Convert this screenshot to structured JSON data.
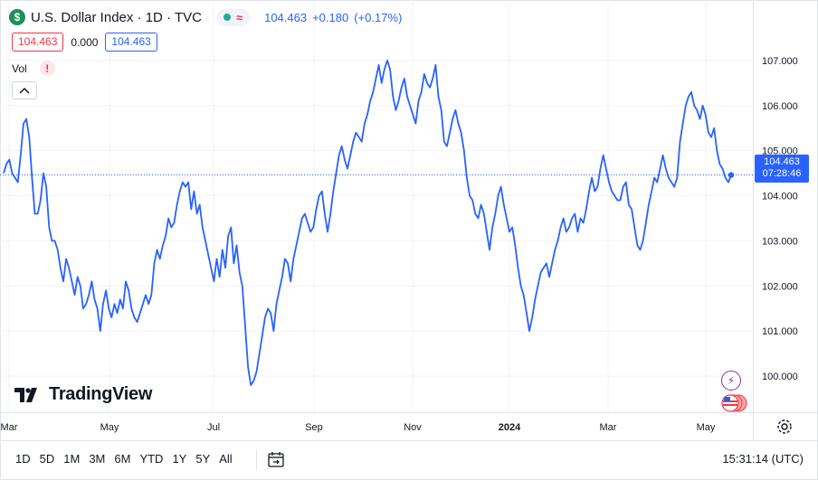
{
  "header": {
    "symbol_icon_text": "$",
    "title": "U.S. Dollar Index · 1D · TVC",
    "delay_icon": "≈",
    "price": "104.463",
    "change": "+0.180",
    "change_pct": "(+0.17%)"
  },
  "price_boxes": {
    "bid": "104.463",
    "spread": "0.000",
    "ask": "104.463"
  },
  "volume": {
    "label": "Vol",
    "warning_icon": "!"
  },
  "last_price_tag": {
    "price": "104.463",
    "countdown": "07:28:46"
  },
  "watermark": {
    "text": "TradingView"
  },
  "toolbar": {
    "ranges": [
      "1D",
      "5D",
      "1M",
      "3M",
      "6M",
      "YTD",
      "1Y",
      "5Y",
      "All"
    ],
    "clock": "15:31:14 (UTC)"
  },
  "colors": {
    "line": "#2962ff",
    "grid": "#f0f3fa",
    "axis_text": "#131722",
    "positive": "#2962ff",
    "negative": "#f23645"
  },
  "chart_data": {
    "type": "line",
    "title": "U.S. Dollar Index · 1D · TVC",
    "xlabel": "",
    "ylabel": "",
    "ylim": [
      99.2,
      107.9
    ],
    "x_ticks": [
      "Mar",
      "May",
      "Jul",
      "Sep",
      "Nov",
      "2024",
      "Mar",
      "May"
    ],
    "y_ticks": [
      "100.000",
      "101.000",
      "102.000",
      "103.000",
      "104.000",
      "105.000",
      "106.000",
      "107.000"
    ],
    "last_value": 104.463,
    "grid": true,
    "series": [
      {
        "values": [
          104.5,
          104.7,
          104.8,
          104.5,
          104.4,
          104.3,
          104.9,
          105.6,
          105.7,
          105.3,
          104.4,
          103.6,
          103.6,
          103.9,
          104.5,
          104.2,
          103.3,
          103.0,
          103.0,
          102.8,
          102.4,
          102.1,
          102.6,
          102.4,
          102.1,
          101.8,
          102.2,
          102.0,
          101.5,
          101.6,
          101.8,
          102.1,
          101.7,
          101.5,
          101.0,
          101.6,
          101.9,
          101.5,
          101.3,
          101.6,
          101.4,
          101.7,
          101.5,
          102.1,
          101.9,
          101.5,
          101.3,
          101.2,
          101.4,
          101.6,
          101.8,
          101.6,
          101.8,
          102.5,
          102.8,
          102.6,
          102.9,
          103.1,
          103.5,
          103.3,
          103.4,
          103.8,
          104.1,
          104.3,
          104.2,
          104.3,
          103.7,
          104.1,
          103.6,
          103.8,
          103.3,
          103.0,
          102.7,
          102.4,
          102.1,
          102.6,
          102.2,
          102.8,
          102.4,
          103.1,
          103.3,
          102.5,
          102.9,
          102.3,
          102.0,
          101.1,
          100.2,
          99.8,
          99.9,
          100.1,
          100.5,
          100.9,
          101.3,
          101.5,
          101.4,
          101.0,
          101.6,
          101.9,
          102.2,
          102.6,
          102.5,
          102.1,
          102.6,
          102.9,
          103.2,
          103.5,
          103.6,
          103.4,
          103.2,
          103.3,
          103.7,
          104.0,
          104.1,
          103.6,
          103.2,
          103.6,
          104.1,
          104.5,
          104.9,
          105.1,
          104.8,
          104.6,
          104.9,
          105.2,
          105.4,
          105.3,
          105.2,
          105.6,
          105.8,
          106.1,
          106.3,
          106.6,
          106.9,
          106.5,
          106.8,
          107.0,
          106.8,
          106.2,
          105.9,
          106.1,
          106.4,
          106.6,
          106.2,
          106.0,
          105.8,
          105.6,
          106.1,
          106.3,
          106.7,
          106.5,
          106.4,
          106.6,
          106.9,
          106.2,
          105.9,
          105.2,
          105.1,
          105.4,
          105.7,
          105.9,
          105.6,
          105.4,
          105.0,
          104.4,
          104.0,
          103.9,
          103.6,
          103.5,
          103.8,
          103.6,
          103.2,
          102.8,
          103.3,
          103.6,
          104.0,
          104.2,
          103.8,
          103.5,
          103.2,
          103.3,
          102.9,
          102.4,
          102.0,
          101.8,
          101.4,
          101.0,
          101.3,
          101.7,
          102.0,
          102.3,
          102.4,
          102.5,
          102.2,
          102.5,
          102.8,
          103.0,
          103.3,
          103.5,
          103.2,
          103.3,
          103.5,
          103.6,
          103.2,
          103.5,
          103.4,
          103.7,
          104.1,
          104.4,
          104.1,
          104.2,
          104.6,
          104.9,
          104.6,
          104.3,
          104.1,
          104.0,
          103.9,
          103.9,
          104.2,
          104.3,
          103.8,
          103.7,
          103.3,
          102.9,
          102.8,
          103.0,
          103.4,
          103.8,
          104.1,
          104.4,
          104.3,
          104.6,
          104.9,
          104.6,
          104.4,
          104.3,
          104.2,
          104.4,
          105.2,
          105.6,
          106.0,
          106.2,
          106.3,
          106.0,
          105.9,
          105.7,
          106.0,
          105.8,
          105.4,
          105.3,
          105.5,
          105.0,
          104.7,
          104.6,
          104.4,
          104.3,
          104.46
        ]
      }
    ]
  }
}
